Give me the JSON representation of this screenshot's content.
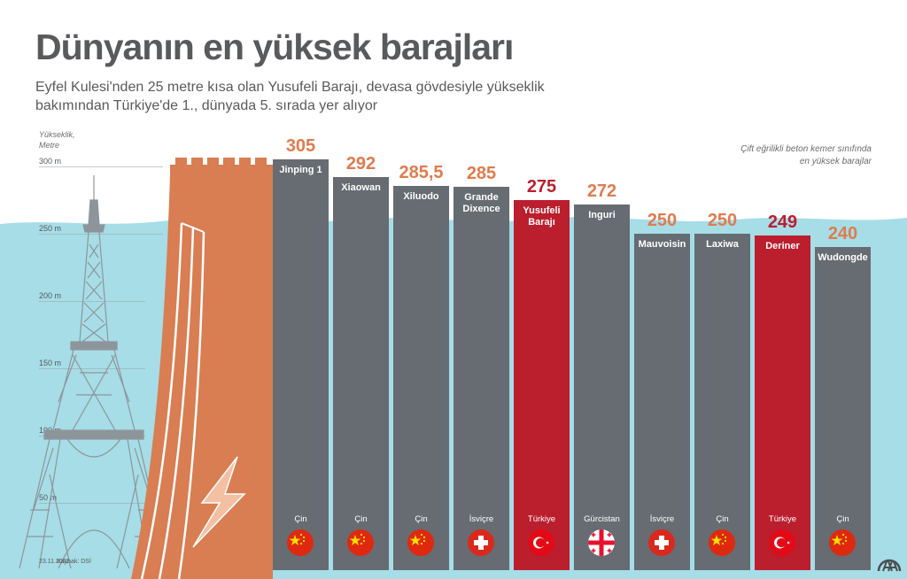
{
  "title": "Dünyanın en yüksek barajları",
  "subtitle": [
    "Eyfel Kulesi'nden 25 metre kısa olan Yusufeli Barajı, devasa gövdesiyle yükseklik",
    "bakımından Türkiye'de 1., dünyada 5. sırada yer alıyor"
  ],
  "axis_title": [
    "Yükseklik,",
    "Metre"
  ],
  "note": [
    "Çift eğrilikli beton kemer sınıfında",
    "en yüksek barajlar"
  ],
  "footer": {
    "date": "23.11.2022",
    "source": "Kaynak: DSİ"
  },
  "icons": {
    "tower": "eiffel-tower-icon",
    "dam": "dam-wall-icon",
    "energy": "lightning-bolt-icon",
    "logo": "aa-logo-icon"
  },
  "colors": {
    "bar": "#666c71",
    "highlight": "#bb1e2d",
    "value": "#e07b4e",
    "dam": "#d97d52",
    "water": "#a6dde7"
  },
  "chart_data": {
    "type": "bar",
    "title": "Dünyanın en yüksek barajları",
    "ylabel": "Yükseklik, Metre",
    "ylim": [
      0,
      305
    ],
    "yticks": [
      50,
      100,
      150,
      200,
      250,
      300
    ],
    "ytick_labels": [
      "50 m",
      "100 m",
      "150 m",
      "200 m",
      "250 m",
      "300 m"
    ],
    "categories": [
      "Jinping 1",
      "Xiaowan",
      "Xiluodo",
      "Grande Dixence",
      "Yusufeli Barajı",
      "Inguri",
      "Mauvoisin",
      "Laxiwa",
      "Deriner",
      "Wudongde"
    ],
    "value_labels": [
      "305",
      "292",
      "285,5",
      "285",
      "275",
      "272",
      "250",
      "250",
      "249",
      "240"
    ],
    "values": [
      305,
      292,
      285.5,
      285,
      275,
      272,
      250,
      250,
      249,
      240
    ],
    "countries": [
      "Çin",
      "Çin",
      "Çin",
      "İsviçre",
      "Türkiye",
      "Gürcistan",
      "İsviçre",
      "Çin",
      "Türkiye",
      "Çin"
    ],
    "flags": [
      "china-flag-icon",
      "china-flag-icon",
      "china-flag-icon",
      "switzerland-flag-icon",
      "turkey-flag-icon",
      "georgia-flag-icon",
      "switzerland-flag-icon",
      "china-flag-icon",
      "turkey-flag-icon",
      "china-flag-icon"
    ],
    "highlight": [
      "Yusufeli Barajı",
      "Deriner"
    ]
  }
}
